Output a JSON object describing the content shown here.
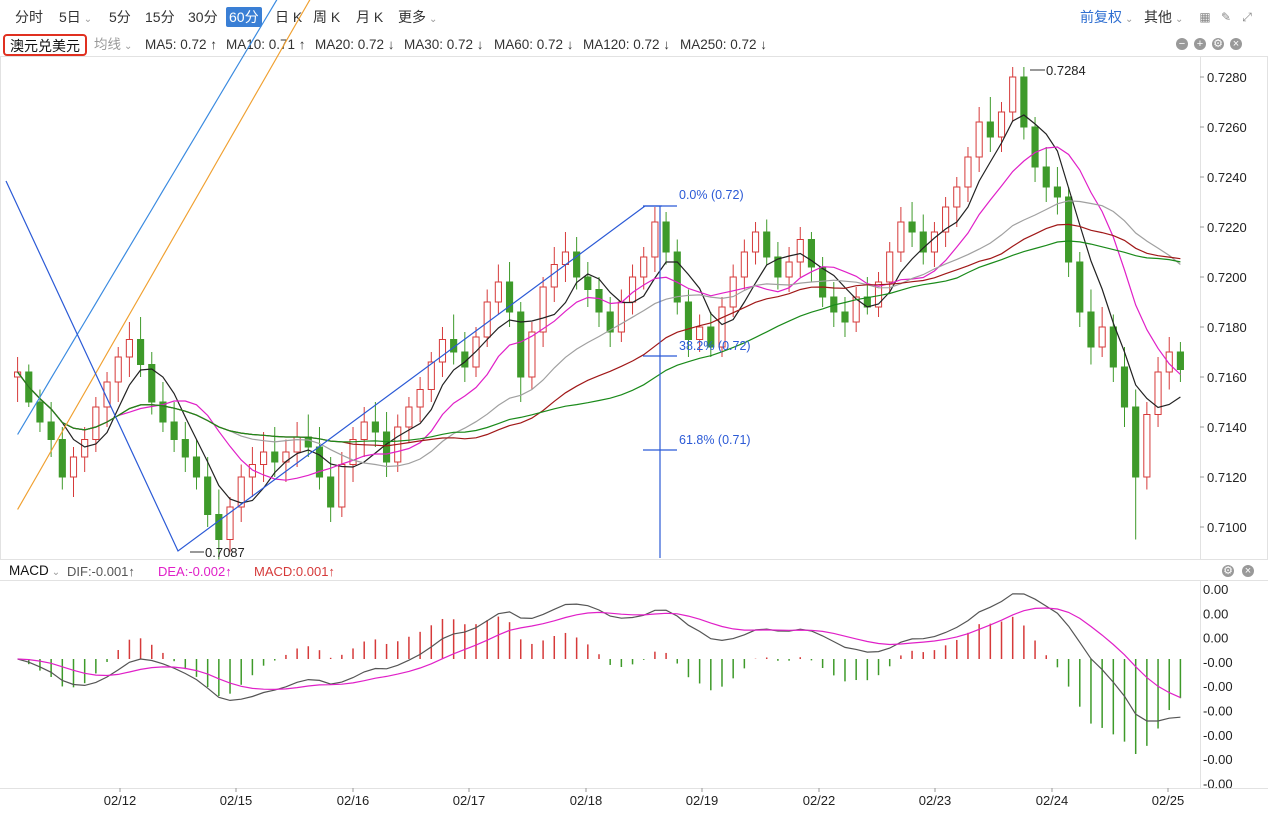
{
  "toolbar": {
    "periods": [
      "分时",
      "5日",
      "5分",
      "15分",
      "30分",
      "60分",
      "日 K",
      "周 K",
      "月 K",
      "更多"
    ],
    "active_period": "60分",
    "adjust": "前复权",
    "other": "其他"
  },
  "symbol": "澳元兑美元",
  "ma_bar": {
    "avg_line": "均线",
    "items": [
      {
        "label": "MA5: 0.72 ↑",
        "color": "#222222"
      },
      {
        "label": "MA10: 0.71 ↑",
        "color": "#e020c8"
      },
      {
        "label": "MA20: 0.72 ↓",
        "color": "#a0a0a0"
      },
      {
        "label": "MA30: 0.72 ↓",
        "color": "#a01818"
      },
      {
        "label": "MA60: 0.72 ↓",
        "color": "#1a8a1a"
      },
      {
        "label": "MA120: 0.72 ↓",
        "color": "#3a8ae0"
      },
      {
        "label": "MA250: 0.72 ↓",
        "color": "#f0a030"
      }
    ]
  },
  "chart_data": [
    {
      "type": "candlestick",
      "y_ticks": [
        "0.7280",
        "0.7260",
        "0.7240",
        "0.7220",
        "0.7200",
        "0.7180",
        "0.7160",
        "0.7140",
        "0.7120",
        "0.7100"
      ],
      "ylim": [
        0.7088,
        0.7288
      ],
      "x_ticks": [
        "02/12",
        "02/15",
        "02/16",
        "02/17",
        "02/18",
        "02/19",
        "02/22",
        "02/23",
        "02/24",
        "02/25"
      ],
      "annotations": {
        "high": "0.7284",
        "low": "0.7087"
      },
      "fib_labels": [
        "0.0% (0.72)",
        "38.2% (0.72)",
        "61.8% (0.71)"
      ],
      "candles": [
        [
          0.716,
          0.7168,
          0.715,
          0.7162
        ],
        [
          0.7162,
          0.7165,
          0.7148,
          0.715
        ],
        [
          0.715,
          0.7155,
          0.7138,
          0.7142
        ],
        [
          0.7142,
          0.715,
          0.7128,
          0.7135
        ],
        [
          0.7135,
          0.714,
          0.7115,
          0.712
        ],
        [
          0.712,
          0.7132,
          0.7112,
          0.7128
        ],
        [
          0.7128,
          0.714,
          0.7122,
          0.7135
        ],
        [
          0.7135,
          0.7152,
          0.713,
          0.7148
        ],
        [
          0.7148,
          0.7162,
          0.714,
          0.7158
        ],
        [
          0.7158,
          0.7172,
          0.715,
          0.7168
        ],
        [
          0.7168,
          0.7182,
          0.716,
          0.7175
        ],
        [
          0.7175,
          0.7184,
          0.716,
          0.7165
        ],
        [
          0.7165,
          0.717,
          0.7145,
          0.715
        ],
        [
          0.715,
          0.7158,
          0.7138,
          0.7142
        ],
        [
          0.7142,
          0.715,
          0.713,
          0.7135
        ],
        [
          0.7135,
          0.7142,
          0.7122,
          0.7128
        ],
        [
          0.7128,
          0.7135,
          0.7115,
          0.712
        ],
        [
          0.712,
          0.7128,
          0.71,
          0.7105
        ],
        [
          0.7105,
          0.7115,
          0.7087,
          0.7095
        ],
        [
          0.7095,
          0.7112,
          0.709,
          0.7108
        ],
        [
          0.7108,
          0.7125,
          0.7102,
          0.712
        ],
        [
          0.712,
          0.7132,
          0.7112,
          0.7125
        ],
        [
          0.7125,
          0.7138,
          0.7118,
          0.713
        ],
        [
          0.713,
          0.714,
          0.712,
          0.7126
        ],
        [
          0.7126,
          0.7135,
          0.7118,
          0.713
        ],
        [
          0.713,
          0.7142,
          0.7124,
          0.7136
        ],
        [
          0.7136,
          0.7145,
          0.7128,
          0.7132
        ],
        [
          0.7132,
          0.714,
          0.7115,
          0.712
        ],
        [
          0.712,
          0.7128,
          0.7102,
          0.7108
        ],
        [
          0.7108,
          0.713,
          0.7104,
          0.7125
        ],
        [
          0.7125,
          0.714,
          0.7118,
          0.7135
        ],
        [
          0.7135,
          0.7148,
          0.7128,
          0.7142
        ],
        [
          0.7142,
          0.715,
          0.7132,
          0.7138
        ],
        [
          0.7138,
          0.7146,
          0.712,
          0.7126
        ],
        [
          0.7126,
          0.7145,
          0.7122,
          0.714
        ],
        [
          0.714,
          0.7152,
          0.7134,
          0.7148
        ],
        [
          0.7148,
          0.716,
          0.7142,
          0.7155
        ],
        [
          0.7155,
          0.717,
          0.715,
          0.7166
        ],
        [
          0.7166,
          0.718,
          0.716,
          0.7175
        ],
        [
          0.7175,
          0.7185,
          0.7165,
          0.717
        ],
        [
          0.717,
          0.7178,
          0.7158,
          0.7164
        ],
        [
          0.7164,
          0.718,
          0.716,
          0.7176
        ],
        [
          0.7176,
          0.7195,
          0.7172,
          0.719
        ],
        [
          0.719,
          0.7205,
          0.7185,
          0.7198
        ],
        [
          0.7198,
          0.7206,
          0.718,
          0.7186
        ],
        [
          0.7186,
          0.719,
          0.715,
          0.716
        ],
        [
          0.716,
          0.7182,
          0.7155,
          0.7178
        ],
        [
          0.7178,
          0.72,
          0.7172,
          0.7196
        ],
        [
          0.7196,
          0.7212,
          0.719,
          0.7205
        ],
        [
          0.7205,
          0.7218,
          0.7198,
          0.721
        ],
        [
          0.721,
          0.7216,
          0.7195,
          0.72
        ],
        [
          0.72,
          0.7206,
          0.7188,
          0.7195
        ],
        [
          0.7195,
          0.72,
          0.718,
          0.7186
        ],
        [
          0.7186,
          0.7192,
          0.7172,
          0.7178
        ],
        [
          0.7178,
          0.7195,
          0.7174,
          0.719
        ],
        [
          0.719,
          0.7205,
          0.7185,
          0.72
        ],
        [
          0.72,
          0.7212,
          0.7195,
          0.7208
        ],
        [
          0.7208,
          0.7228,
          0.7202,
          0.7222
        ],
        [
          0.7222,
          0.7226,
          0.7205,
          0.721
        ],
        [
          0.721,
          0.7215,
          0.7185,
          0.719
        ],
        [
          0.719,
          0.7195,
          0.7168,
          0.7175
        ],
        [
          0.7175,
          0.7185,
          0.717,
          0.718
        ],
        [
          0.718,
          0.7186,
          0.7168,
          0.7172
        ],
        [
          0.7172,
          0.7192,
          0.7168,
          0.7188
        ],
        [
          0.7188,
          0.7205,
          0.7184,
          0.72
        ],
        [
          0.72,
          0.7215,
          0.7195,
          0.721
        ],
        [
          0.721,
          0.7222,
          0.7205,
          0.7218
        ],
        [
          0.7218,
          0.7223,
          0.7205,
          0.7208
        ],
        [
          0.7208,
          0.7214,
          0.7195,
          0.72
        ],
        [
          0.72,
          0.7212,
          0.7194,
          0.7206
        ],
        [
          0.7206,
          0.722,
          0.72,
          0.7215
        ],
        [
          0.7215,
          0.7218,
          0.7198,
          0.7204
        ],
        [
          0.7204,
          0.7208,
          0.7188,
          0.7192
        ],
        [
          0.7192,
          0.7198,
          0.718,
          0.7186
        ],
        [
          0.7186,
          0.7192,
          0.7176,
          0.7182
        ],
        [
          0.7182,
          0.7196,
          0.7178,
          0.7192
        ],
        [
          0.7192,
          0.72,
          0.7185,
          0.7188
        ],
        [
          0.7188,
          0.7202,
          0.7184,
          0.7198
        ],
        [
          0.7198,
          0.7214,
          0.7194,
          0.721
        ],
        [
          0.721,
          0.7228,
          0.7206,
          0.7222
        ],
        [
          0.7222,
          0.723,
          0.7212,
          0.7218
        ],
        [
          0.7218,
          0.7225,
          0.7205,
          0.721
        ],
        [
          0.721,
          0.7222,
          0.7204,
          0.7218
        ],
        [
          0.7218,
          0.7232,
          0.7212,
          0.7228
        ],
        [
          0.7228,
          0.724,
          0.722,
          0.7236
        ],
        [
          0.7236,
          0.7252,
          0.723,
          0.7248
        ],
        [
          0.7248,
          0.7268,
          0.7242,
          0.7262
        ],
        [
          0.7262,
          0.7272,
          0.725,
          0.7256
        ],
        [
          0.7256,
          0.727,
          0.725,
          0.7266
        ],
        [
          0.7266,
          0.7284,
          0.7262,
          0.728
        ],
        [
          0.728,
          0.7284,
          0.7255,
          0.726
        ],
        [
          0.726,
          0.7264,
          0.7238,
          0.7244
        ],
        [
          0.7244,
          0.7252,
          0.723,
          0.7236
        ],
        [
          0.7236,
          0.7244,
          0.7225,
          0.7232
        ],
        [
          0.7232,
          0.7236,
          0.72,
          0.7206
        ],
        [
          0.7206,
          0.721,
          0.718,
          0.7186
        ],
        [
          0.7186,
          0.7195,
          0.7165,
          0.7172
        ],
        [
          0.7172,
          0.7188,
          0.7168,
          0.718
        ],
        [
          0.718,
          0.7185,
          0.7158,
          0.7164
        ],
        [
          0.7164,
          0.7172,
          0.714,
          0.7148
        ],
        [
          0.7148,
          0.7155,
          0.7095,
          0.712
        ],
        [
          0.712,
          0.715,
          0.7115,
          0.7145
        ],
        [
          0.7145,
          0.7168,
          0.714,
          0.7162
        ],
        [
          0.7162,
          0.7176,
          0.7155,
          0.717
        ],
        [
          0.717,
          0.7174,
          0.7158,
          0.7163
        ]
      ]
    },
    {
      "type": "macd",
      "title": "MACD",
      "legend": [
        "DIF:-0.001↑",
        "DEA:-0.002↑",
        "MACD:0.001↑"
      ],
      "y_ticks": [
        "0.00",
        "0.00",
        "0.00",
        "-0.00",
        "-0.00",
        "-0.00",
        "-0.00",
        "-0.00",
        "-0.00"
      ]
    }
  ],
  "colors": {
    "up": "#d63a3a",
    "down": "#3e9a2a",
    "fib": "#2b5ad6",
    "accent": "#3a7fd5",
    "highlight": "#e03020"
  }
}
